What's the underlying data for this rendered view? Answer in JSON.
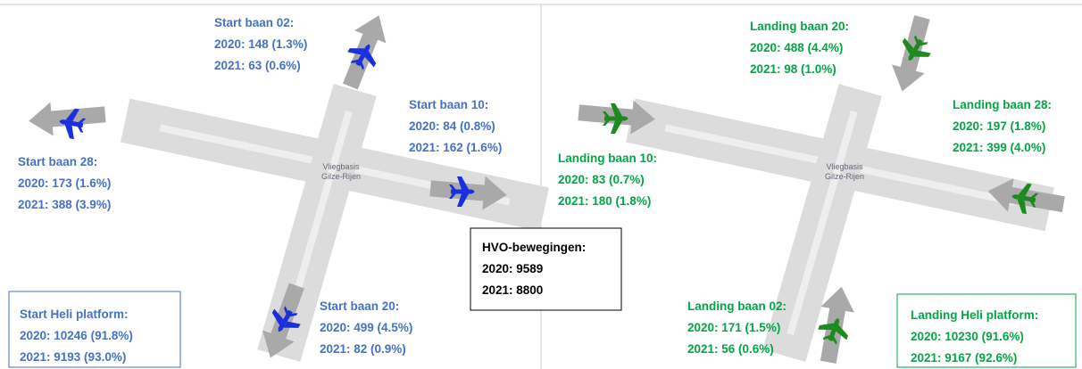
{
  "left": {
    "map_label": [
      "Vliegbasis",
      "Gilze-Rijen"
    ],
    "runways": [
      {
        "title": "Start baan 02:",
        "lines": [
          "2020: 148 (1.3%)",
          "2021: 63 (0.6%)"
        ]
      },
      {
        "title": "Start baan 10:",
        "lines": [
          "2020: 84 (0.8%)",
          "2021: 162 (1.6%)"
        ]
      },
      {
        "title": "Start baan 28:",
        "lines": [
          "2020: 173 (1.6%)",
          "2021: 388 (3.9%)"
        ]
      },
      {
        "title": "Start baan 20:",
        "lines": [
          "2020: 499 (4.5%)",
          "2021: 82 (0.9%)"
        ]
      }
    ],
    "heli": {
      "title": "Start Heli platform:",
      "lines": [
        "2020: 10246 (91.8%)",
        "2021: 9193 (93.0%)"
      ]
    }
  },
  "right": {
    "map_label": [
      "Vliegbasis",
      "Gilze-Rijen"
    ],
    "runways": [
      {
        "title": "Landing baan 20:",
        "lines": [
          "2020: 488 (4.4%)",
          "2021: 98 (1.0%)"
        ]
      },
      {
        "title": "Landing baan 28:",
        "lines": [
          "2020: 197 (1.8%)",
          "2021: 399 (4.0%)"
        ]
      },
      {
        "title": "Landing baan 10:",
        "lines": [
          "2020: 83 (0.7%)",
          "2021: 180 (1.8%)"
        ]
      },
      {
        "title": "Landing baan 02:",
        "lines": [
          "2020: 171 (1.5%)",
          "2021: 56 (0.6%)"
        ]
      }
    ],
    "heli": {
      "title": "Landing Heli platform:",
      "lines": [
        "2020: 10230 (91.6%)",
        "2021: 9167 (92.6%)"
      ]
    }
  },
  "hvo": {
    "title": "HVO-bewegingen:",
    "lines": [
      "2020: 9589",
      "2021: 8800"
    ]
  }
}
